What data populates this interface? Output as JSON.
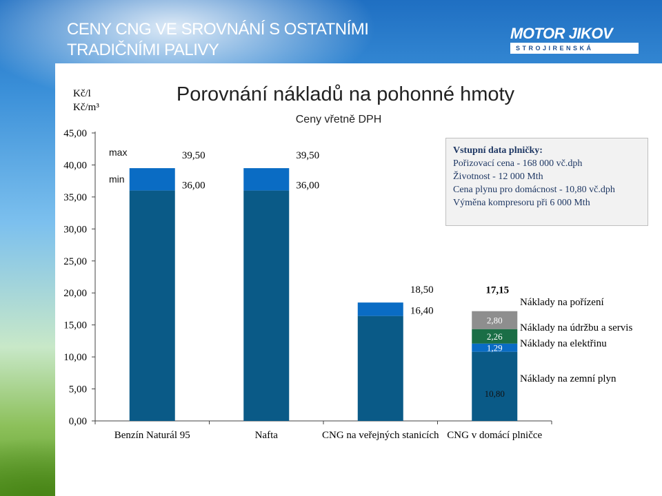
{
  "slide": {
    "title": "CENY CNG VE SROVNÁNÍ S OSTATNÍMI TRADIČNÍMI PALIVY",
    "logo_main": "MOTOR JIKOV",
    "logo_sub": "STROJIRENSKÁ"
  },
  "infobox": {
    "title": "Vstupní data plničky:",
    "lines": [
      "Pořizovací cena - 168 000 vč.dph",
      "Životnost - 12 000 Mth",
      "Cena plynu pro domácnost - 10,80 vč.dph",
      "Výměna kompresoru při 6 000 Mth"
    ]
  },
  "colors": {
    "dark_blue": "#0a5a87",
    "light_blue": "#0a6cc4",
    "gray": "#8e8e8e",
    "green": "#1a6e46",
    "axis": "#404040"
  },
  "chart_data": {
    "type": "bar",
    "title": "Porovnání nákladů na pohonné hmoty",
    "subtitle": "Ceny vřetně DPH",
    "ylabel_lines": [
      "Kč/l",
      "Kč/m³"
    ],
    "ylim": [
      0,
      45
    ],
    "yticks": [
      "0,00",
      "5,00",
      "10,00",
      "15,00",
      "20,00",
      "25,00",
      "30,00",
      "35,00",
      "40,00",
      "45,00"
    ],
    "categories": [
      "Benzín Naturál 95",
      "Nafta",
      "CNG na veřejných stanicích",
      "CNG v domácí plničce"
    ],
    "range_labels": {
      "max": "max",
      "min": "min"
    },
    "ranges": [
      {
        "min": 36.0,
        "max": 39.5,
        "min_label": "36,00",
        "max_label": "39,50"
      },
      {
        "min": 36.0,
        "max": 39.5,
        "min_label": "36,00",
        "max_label": "39,50"
      },
      {
        "min": 16.4,
        "max": 18.5,
        "min_label": "16,40",
        "max_label": "18,50"
      }
    ],
    "stack": {
      "category": "CNG v domácí plničce",
      "total": 17.15,
      "total_label": "17,15",
      "segments": [
        {
          "name": "Náklady na zemní plyn",
          "value": 10.8,
          "label": "10,80",
          "color": "#0a5a87"
        },
        {
          "name": "Náklady na elektřinu",
          "value": 1.29,
          "label": "1,29",
          "color": "#0a6cc4"
        },
        {
          "name": "Náklady na údržbu a servis",
          "value": 2.26,
          "label": "2,26",
          "color": "#1a6e46"
        },
        {
          "name": "Náklady na pořízení",
          "value": 2.8,
          "label": "2,80",
          "color": "#8e8e8e"
        }
      ]
    },
    "legend_order": [
      "Náklady na pořízení",
      "Náklady na údržbu a servis",
      "Náklady na elektřinu",
      "Náklady na zemní plyn"
    ],
    "grid": false,
    "legend_position": "right"
  }
}
